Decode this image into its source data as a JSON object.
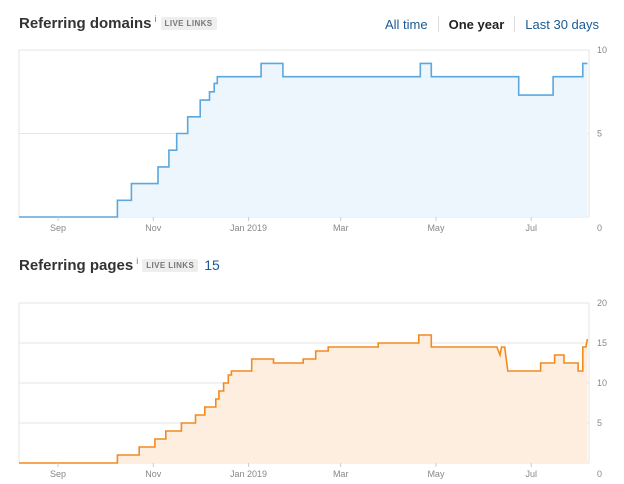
{
  "range_tabs": [
    "All time",
    "One year",
    "Last 30 days"
  ],
  "range_active": "One year",
  "domains": {
    "title": "Referring domains",
    "info": "i",
    "badge": "LIVE LINKS"
  },
  "pages": {
    "title": "Referring pages",
    "info": "i",
    "badge": "LIVE LINKS",
    "count": "15"
  },
  "chart_data": [
    {
      "type": "area",
      "title": "Referring domains",
      "color": "#5ca7dd",
      "fill": "#eef6fd",
      "x_tick_labels": [
        "Sep",
        "Nov",
        "Jan 2019",
        "Mar",
        "May",
        "Jul"
      ],
      "x_tick_dates": [
        "2018-09-01",
        "2018-11-01",
        "2019-01-01",
        "2019-03-01",
        "2019-05-01",
        "2019-07-01"
      ],
      "x_range": [
        "2018-08-07",
        "2019-08-07"
      ],
      "y_ticks": [
        0,
        5,
        10
      ],
      "ylim": [
        0,
        10
      ],
      "grid": true,
      "y_axis_side": "right",
      "series": [
        {
          "x": [
            "2018-08-07",
            "2018-10-09",
            "2018-10-18",
            "2018-11-04",
            "2018-11-23",
            "2018-12-01",
            "2018-12-07",
            "2018-12-15",
            "2018-12-19",
            "2018-12-22",
            "2019-01-01",
            "2019-01-16",
            "2019-04-26",
            "2019-05-01",
            "2019-06-23",
            "2019-07-07",
            "2019-08-03",
            "2019-08-07"
          ],
          "y": [
            0,
            0,
            1,
            2,
            3,
            4,
            5,
            6,
            7,
            8,
            8,
            8,
            8,
            8,
            7,
            8,
            9,
            9
          ],
          "steps_detail": [
            [
              "2018-08-07",
              0
            ],
            [
              "2018-10-09",
              0
            ],
            [
              "2018-10-09",
              1
            ],
            [
              "2018-10-18",
              1
            ],
            [
              "2018-10-18",
              2
            ],
            [
              "2018-11-04",
              2
            ],
            [
              "2018-11-04",
              3
            ],
            [
              "2018-11-11",
              3
            ],
            [
              "2018-11-11",
              4
            ],
            [
              "2018-11-16",
              4
            ],
            [
              "2018-11-16",
              5
            ],
            [
              "2018-11-23",
              5
            ],
            [
              "2018-11-23",
              6
            ],
            [
              "2018-12-01",
              6
            ],
            [
              "2018-12-01",
              7
            ],
            [
              "2018-12-07",
              7
            ],
            [
              "2018-12-07",
              7.5
            ],
            [
              "2018-12-10",
              7.5
            ],
            [
              "2018-12-10",
              8
            ],
            [
              "2018-12-12",
              8
            ],
            [
              "2018-12-12",
              8.4
            ],
            [
              "2019-01-09",
              8.4
            ],
            [
              "2019-01-09",
              9.2
            ],
            [
              "2019-01-23",
              9.2
            ],
            [
              "2019-01-23",
              8.4
            ],
            [
              "2019-04-21",
              8.4
            ],
            [
              "2019-04-21",
              9.2
            ],
            [
              "2019-04-28",
              9.2
            ],
            [
              "2019-04-28",
              8.4
            ],
            [
              "2019-06-23",
              8.4
            ],
            [
              "2019-06-23",
              7.3
            ],
            [
              "2019-07-15",
              7.3
            ],
            [
              "2019-07-15",
              8.4
            ],
            [
              "2019-08-03",
              8.4
            ],
            [
              "2019-08-03",
              9.2
            ],
            [
              "2019-08-06",
              9.2
            ]
          ]
        }
      ]
    },
    {
      "type": "area",
      "title": "Referring pages",
      "color": "#f28a1e",
      "fill": "#fdeee0",
      "x_tick_labels": [
        "Sep",
        "Nov",
        "Jan 2019",
        "Mar",
        "May",
        "Jul"
      ],
      "x_tick_dates": [
        "2018-09-01",
        "2018-11-01",
        "2019-01-01",
        "2019-03-01",
        "2019-05-01",
        "2019-07-01"
      ],
      "x_range": [
        "2018-08-07",
        "2019-08-07"
      ],
      "y_ticks": [
        0,
        5,
        10,
        15,
        20
      ],
      "ylim": [
        0,
        20
      ],
      "grid": true,
      "y_axis_side": "right",
      "series": [
        {
          "steps_detail": [
            [
              "2018-08-07",
              0
            ],
            [
              "2018-10-09",
              0
            ],
            [
              "2018-10-09",
              1
            ],
            [
              "2018-10-23",
              1
            ],
            [
              "2018-10-23",
              2
            ],
            [
              "2018-11-02",
              2
            ],
            [
              "2018-11-02",
              3
            ],
            [
              "2018-11-09",
              3
            ],
            [
              "2018-11-09",
              4
            ],
            [
              "2018-11-19",
              4
            ],
            [
              "2018-11-19",
              5
            ],
            [
              "2018-11-28",
              5
            ],
            [
              "2018-11-28",
              6
            ],
            [
              "2018-12-04",
              6
            ],
            [
              "2018-12-04",
              7
            ],
            [
              "2018-12-11",
              7
            ],
            [
              "2018-12-11",
              8
            ],
            [
              "2018-12-13",
              8
            ],
            [
              "2018-12-13",
              9
            ],
            [
              "2018-12-16",
              9
            ],
            [
              "2018-12-16",
              10
            ],
            [
              "2018-12-19",
              10
            ],
            [
              "2018-12-19",
              11
            ],
            [
              "2018-12-21",
              11
            ],
            [
              "2018-12-21",
              11.5
            ],
            [
              "2019-01-03",
              11.5
            ],
            [
              "2019-01-03",
              13
            ],
            [
              "2019-01-17",
              13
            ],
            [
              "2019-01-17",
              12.5
            ],
            [
              "2019-02-05",
              12.5
            ],
            [
              "2019-02-05",
              13
            ],
            [
              "2019-02-13",
              13
            ],
            [
              "2019-02-13",
              14
            ],
            [
              "2019-02-21",
              14
            ],
            [
              "2019-02-21",
              14.5
            ],
            [
              "2019-03-25",
              14.5
            ],
            [
              "2019-03-25",
              15
            ],
            [
              "2019-04-20",
              15
            ],
            [
              "2019-04-20",
              16
            ],
            [
              "2019-04-28",
              16
            ],
            [
              "2019-04-28",
              14.5
            ],
            [
              "2019-06-09",
              14.5
            ],
            [
              "2019-06-11",
              13.5
            ],
            [
              "2019-06-12",
              14.5
            ],
            [
              "2019-06-14",
              14.5
            ],
            [
              "2019-06-16",
              11.5
            ],
            [
              "2019-07-07",
              11.5
            ],
            [
              "2019-07-07",
              12.5
            ],
            [
              "2019-07-16",
              12.5
            ],
            [
              "2019-07-16",
              13.5
            ],
            [
              "2019-07-22",
              13.5
            ],
            [
              "2019-07-22",
              12.5
            ],
            [
              "2019-07-31",
              12.5
            ],
            [
              "2019-07-31",
              11.5
            ],
            [
              "2019-08-03",
              11.5
            ],
            [
              "2019-08-03",
              14.5
            ],
            [
              "2019-08-05",
              14.5
            ],
            [
              "2019-08-06",
              15.5
            ]
          ]
        }
      ]
    }
  ]
}
